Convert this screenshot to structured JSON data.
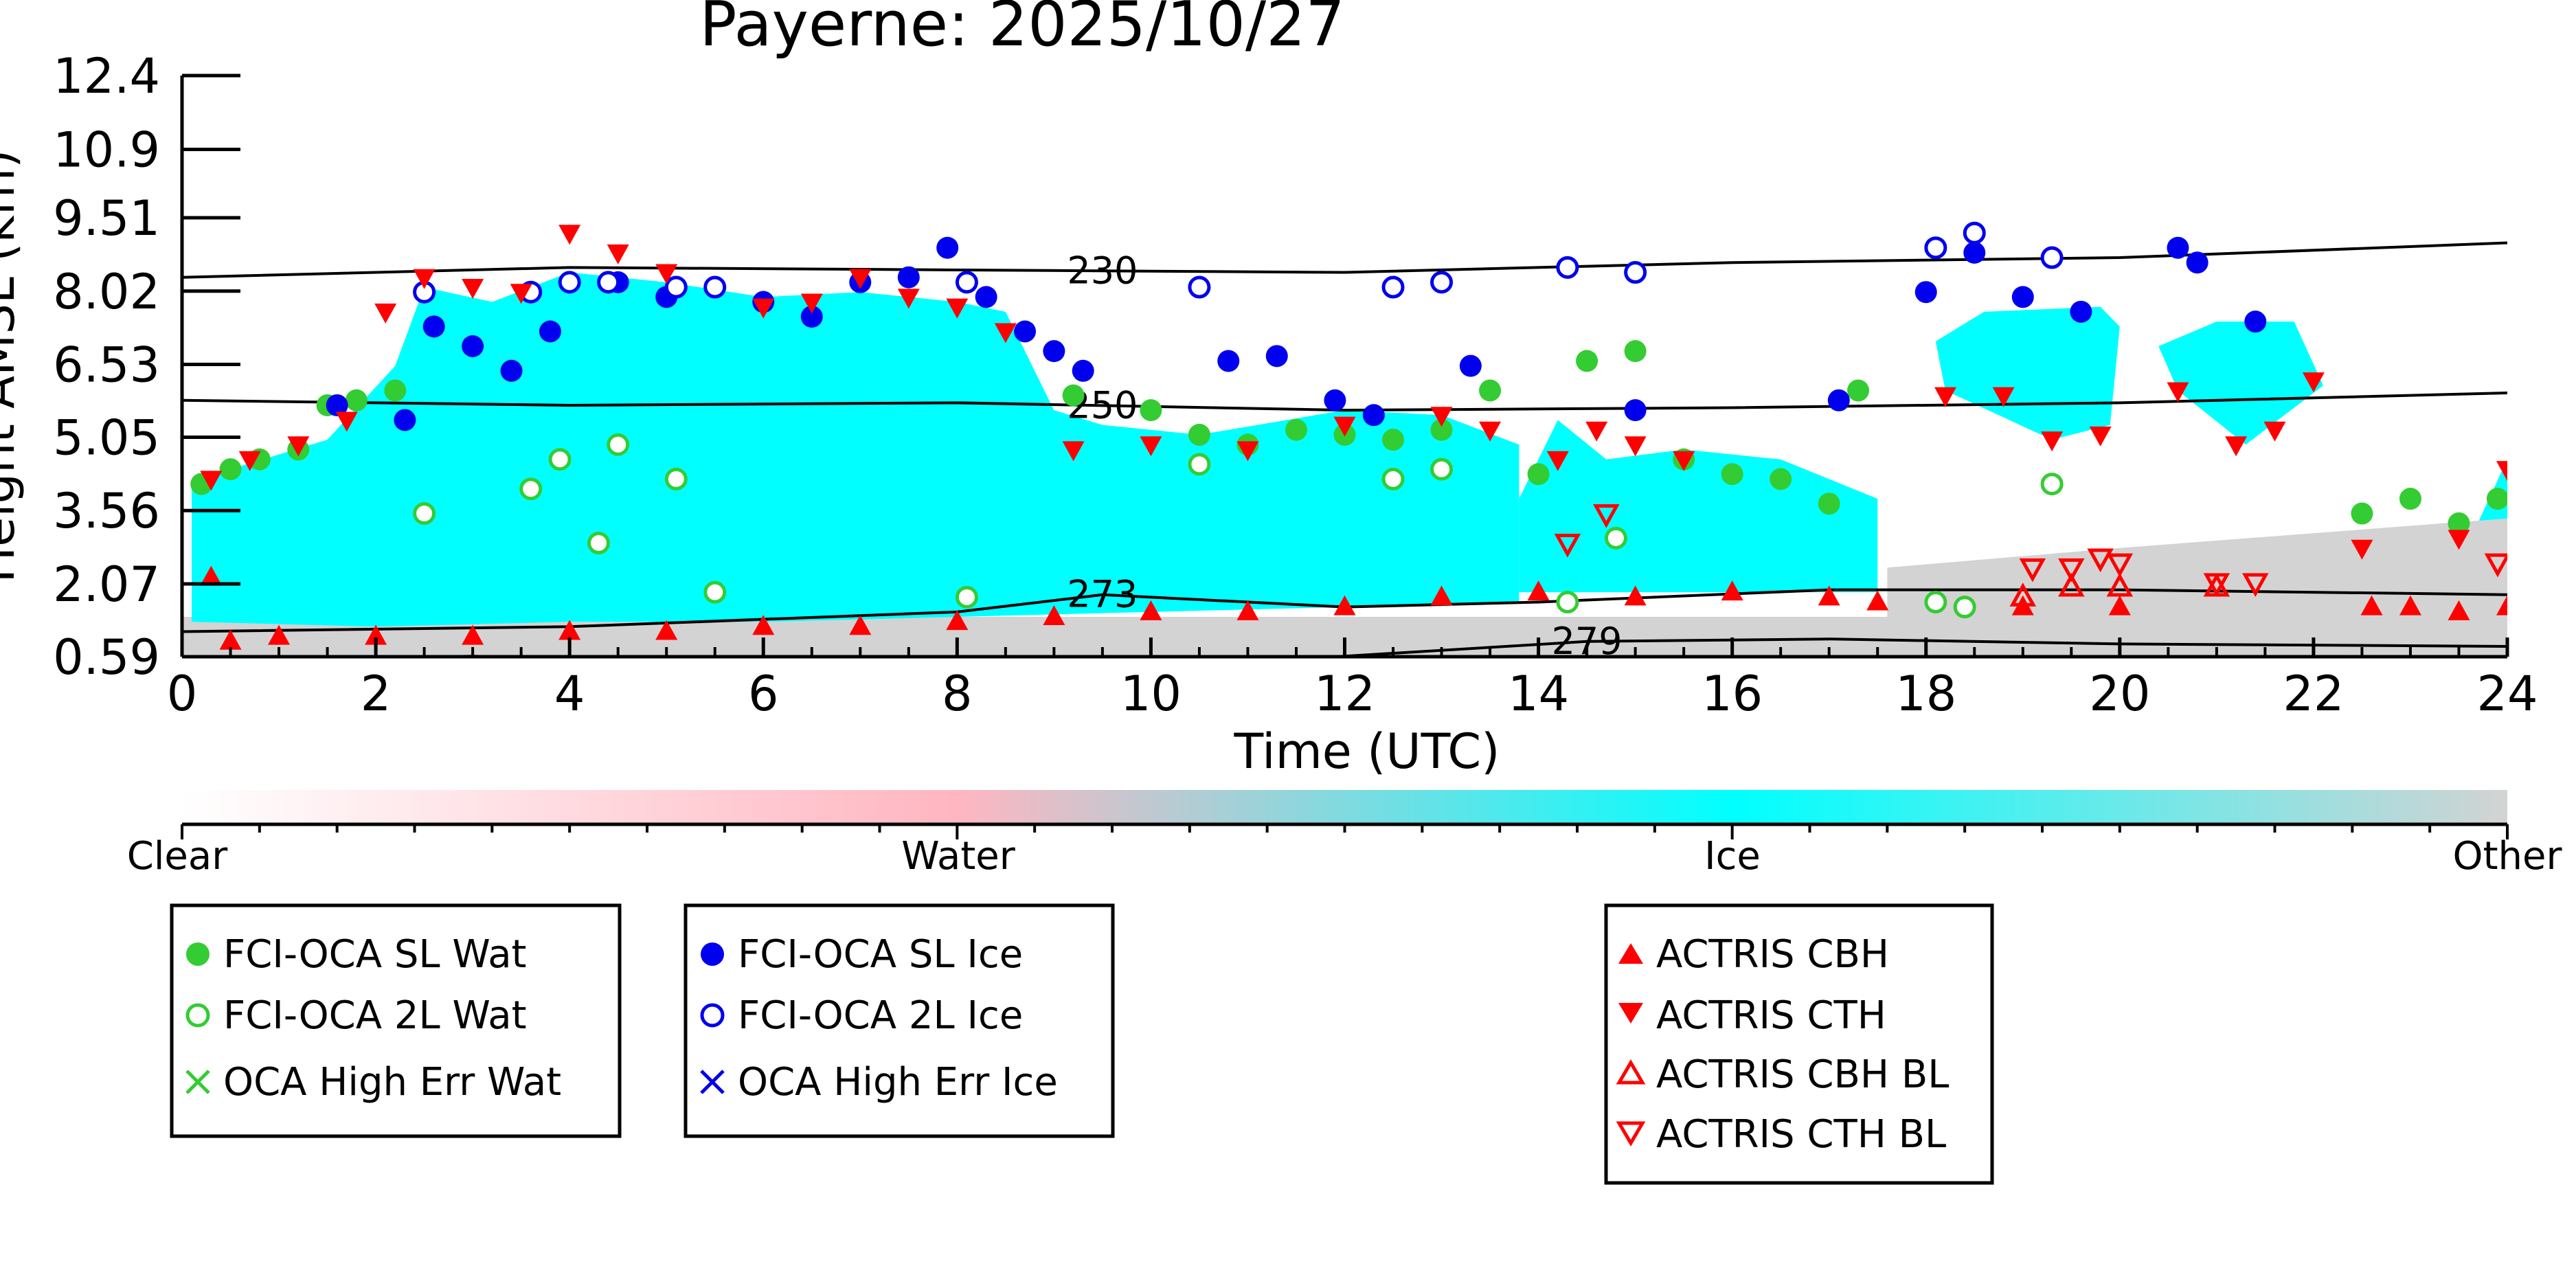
{
  "chart_data": {
    "type": "scatter",
    "title": "Payerne: 2025/10/27",
    "xlabel": "Time (UTC)",
    "ylabel": "Height AMSL (km)",
    "xlim": [
      0,
      24
    ],
    "ylim": [
      0.59,
      12.4
    ],
    "xticks": [
      "0",
      "2",
      "4",
      "6",
      "8",
      "10",
      "12",
      "14",
      "16",
      "18",
      "20",
      "22",
      "24"
    ],
    "yticks": [
      "0.59",
      "2.07",
      "3.56",
      "5.05",
      "6.53",
      "8.02",
      "9.51",
      "10.9",
      "12.4"
    ],
    "colorbar": {
      "labels": [
        "Clear",
        "Water",
        "Ice",
        "Other"
      ],
      "colors": [
        "#ffffff",
        "#ffb6c1",
        "#00ffff",
        "#d3d3d3"
      ]
    },
    "isotherms": [
      {
        "label": "230",
        "x": [
          0,
          4,
          8,
          12,
          16,
          20,
          24
        ],
        "y": [
          8.3,
          8.5,
          8.45,
          8.4,
          8.6,
          8.7,
          9.0
        ]
      },
      {
        "label": "250",
        "x": [
          0,
          4,
          8,
          12,
          16,
          20,
          24
        ],
        "y": [
          5.8,
          5.7,
          5.75,
          5.6,
          5.65,
          5.75,
          5.95
        ]
      },
      {
        "label": "273",
        "x": [
          0,
          4,
          8,
          9.5,
          12,
          14,
          17,
          20,
          24
        ],
        "y": [
          1.1,
          1.2,
          1.5,
          1.85,
          1.6,
          1.7,
          1.95,
          1.95,
          1.85
        ]
      },
      {
        "label": "279",
        "x": [
          0,
          3,
          6,
          9,
          12,
          14.5,
          17,
          20,
          24
        ],
        "y": [
          0.5,
          0.6,
          0.45,
          0.3,
          0.6,
          0.9,
          0.95,
          0.85,
          0.8
        ]
      }
    ],
    "regions": [
      {
        "kind": "ice",
        "x": [
          0.1,
          0.5,
          1.5,
          2.2,
          2.5,
          3.2,
          4,
          5,
          6,
          7,
          8,
          8.5,
          9,
          9.5,
          10.5,
          12,
          13,
          13.8,
          13.8,
          12,
          10,
          8,
          6,
          4,
          2,
          0.1
        ],
        "y": [
          4.2,
          4.4,
          5.0,
          6.5,
          8.1,
          7.8,
          8.4,
          8.2,
          7.9,
          8.0,
          7.8,
          7.6,
          5.6,
          5.3,
          5.1,
          5.6,
          5.5,
          4.9,
          1.7,
          1.6,
          1.5,
          1.4,
          1.3,
          1.3,
          1.2,
          1.3
        ]
      },
      {
        "kind": "ice",
        "x": [
          13.8,
          14.2,
          14.7,
          15.5,
          16.5,
          17.5,
          17.5,
          15,
          13.8
        ],
        "y": [
          3.8,
          5.4,
          4.6,
          4.8,
          4.6,
          3.8,
          1.9,
          1.9,
          1.9
        ]
      },
      {
        "kind": "ice",
        "x": [
          18.1,
          18.6,
          19.8,
          20,
          19.9,
          19.3,
          18.2
        ],
        "y": [
          7.0,
          7.6,
          7.7,
          7.3,
          5.3,
          5.0,
          6.0
        ]
      },
      {
        "kind": "ice",
        "x": [
          20.4,
          21,
          21.8,
          22.1,
          21.3,
          20.6
        ],
        "y": [
          6.9,
          7.4,
          7.4,
          6.1,
          4.9,
          6.0
        ]
      },
      {
        "kind": "ice",
        "x": [
          22.4,
          23.6,
          24,
          24,
          22.4
        ],
        "y": [
          2.8,
          2.9,
          4.6,
          2.0,
          2.0
        ]
      },
      {
        "kind": "other",
        "x": [
          17.6,
          20,
          24,
          24,
          17.6
        ],
        "y": [
          2.4,
          2.8,
          3.4,
          0.59,
          0.59
        ]
      }
    ],
    "series": [
      {
        "name": "FCI-OCA SL Wat",
        "marker": "filled-circle",
        "color": "#33cc33",
        "x": [
          0.2,
          0.5,
          0.8,
          1.2,
          1.5,
          1.8,
          2.2,
          9.2,
          10,
          10.5,
          11,
          11.5,
          12,
          12.5,
          13,
          13.5,
          14,
          14.5,
          15,
          15.5,
          16,
          16.5,
          17,
          17.3,
          22.5,
          23,
          23.5,
          23.9
        ],
        "y": [
          4.1,
          4.4,
          4.6,
          4.8,
          5.7,
          5.8,
          6.0,
          5.9,
          5.6,
          5.1,
          4.9,
          5.2,
          5.1,
          5.0,
          5.2,
          6.0,
          4.3,
          6.6,
          6.8,
          4.6,
          4.3,
          4.2,
          3.7,
          6.0,
          3.5,
          3.8,
          3.3,
          3.8
        ]
      },
      {
        "name": "FCI-OCA 2L Wat",
        "marker": "open-circle",
        "color": "#33cc33",
        "x": [
          2.5,
          3.6,
          3.9,
          4.3,
          4.5,
          5.1,
          5.5,
          8.1,
          10.5,
          12.5,
          13,
          14.3,
          14.8,
          18.1,
          18.4,
          19.3
        ],
        "y": [
          3.5,
          4.0,
          4.6,
          2.9,
          4.9,
          4.2,
          1.9,
          1.8,
          4.5,
          4.2,
          4.4,
          1.7,
          3.0,
          1.7,
          1.6,
          4.1
        ]
      },
      {
        "name": "FCI-OCA SL Ice",
        "marker": "filled-circle",
        "color": "#0000ee",
        "x": [
          1.6,
          2.3,
          2.6,
          3.0,
          3.4,
          3.8,
          4.5,
          5.0,
          5.5,
          6.0,
          6.5,
          7.0,
          7.5,
          7.9,
          8.3,
          8.7,
          9.0,
          9.3,
          10.8,
          11.3,
          11.9,
          12.3,
          13.3,
          15,
          17.1,
          18,
          18.5,
          19,
          19.6,
          20.6,
          20.8,
          21.4
        ],
        "y": [
          5.7,
          5.4,
          7.3,
          6.9,
          6.4,
          7.2,
          8.2,
          7.9,
          8.1,
          7.8,
          7.5,
          8.2,
          8.3,
          8.9,
          7.9,
          7.2,
          6.8,
          6.4,
          6.6,
          6.7,
          5.8,
          5.5,
          6.5,
          5.6,
          5.8,
          8.0,
          8.8,
          7.9,
          7.6,
          8.9,
          8.6,
          7.4
        ]
      },
      {
        "name": "FCI-OCA 2L Ice",
        "marker": "open-circle",
        "color": "#0000ee",
        "x": [
          2.5,
          3.6,
          4.0,
          4.4,
          5.1,
          5.5,
          8.1,
          10.5,
          12.5,
          13,
          14.3,
          15,
          18.1,
          18.5,
          19.3
        ],
        "y": [
          8.0,
          8.0,
          8.2,
          8.2,
          8.1,
          8.1,
          8.2,
          8.1,
          8.1,
          8.2,
          8.5,
          8.4,
          8.9,
          9.2,
          8.7
        ]
      },
      {
        "name": "ACTRIS CBH",
        "marker": "triangle-up",
        "color": "#ff0000",
        "x": [
          0.3,
          0.5,
          1.0,
          2.0,
          3.0,
          4.0,
          5.0,
          6.0,
          7.0,
          8.0,
          9.0,
          10.0,
          11.0,
          12.0,
          13.0,
          14.0,
          15.0,
          16.0,
          17.0,
          17.5,
          19.0,
          20.0,
          22.6,
          23.0,
          23.5,
          24.0
        ],
        "y": [
          2.2,
          0.9,
          1.0,
          1.0,
          1.0,
          1.1,
          1.1,
          1.2,
          1.2,
          1.3,
          1.4,
          1.5,
          1.5,
          1.6,
          1.8,
          1.9,
          1.8,
          1.9,
          1.8,
          1.7,
          1.6,
          1.6,
          1.6,
          1.6,
          1.5,
          1.6
        ]
      },
      {
        "name": "ACTRIS CTH",
        "marker": "triangle-down",
        "color": "#ff0000",
        "x": [
          0.3,
          0.7,
          1.2,
          1.7,
          2.1,
          2.5,
          3.0,
          3.5,
          4.0,
          4.5,
          5.0,
          6.0,
          6.5,
          7.0,
          7.5,
          8.0,
          8.5,
          9.2,
          10.0,
          11.0,
          12.0,
          13.0,
          13.5,
          14.2,
          14.6,
          15.0,
          15.5,
          18.2,
          18.8,
          19.3,
          19.8,
          20.6,
          21.2,
          21.6,
          22.0,
          22.5,
          23.5,
          24.0
        ],
        "y": [
          4.2,
          4.6,
          4.9,
          5.4,
          7.6,
          8.3,
          8.1,
          8.0,
          9.2,
          8.8,
          8.4,
          7.7,
          7.8,
          8.3,
          7.9,
          7.7,
          7.2,
          4.8,
          4.9,
          4.8,
          5.3,
          5.5,
          5.2,
          4.6,
          5.2,
          4.9,
          4.6,
          5.9,
          5.9,
          5.0,
          5.1,
          6.0,
          4.9,
          5.2,
          6.2,
          2.8,
          3.0,
          4.4
        ]
      },
      {
        "name": "ACTRIS CBH BL",
        "marker": "open-triangle-up",
        "color": "#ff0000",
        "x": [
          19.0,
          19.5,
          20.0,
          21.0
        ],
        "y": [
          1.8,
          2.0,
          2.0,
          2.0
        ]
      },
      {
        "name": "ACTRIS CTH BL",
        "marker": "open-triangle-down",
        "color": "#ff0000",
        "x": [
          14.3,
          14.7,
          19.1,
          19.5,
          19.8,
          20.0,
          21.0,
          21.4,
          23.9
        ],
        "y": [
          2.9,
          3.5,
          2.4,
          2.4,
          2.6,
          2.5,
          2.1,
          2.1,
          2.5
        ]
      }
    ],
    "legends": [
      {
        "position": "lower-left",
        "entries": [
          "FCI-OCA SL Wat",
          "FCI-OCA 2L Wat",
          "OCA High Err Wat"
        ]
      },
      {
        "position": "lower-center",
        "entries": [
          "FCI-OCA SL Ice",
          "FCI-OCA 2L Ice",
          "OCA High Err Ice"
        ]
      },
      {
        "position": "lower-right",
        "entries": [
          "ACTRIS CBH",
          "ACTRIS CTH",
          "ACTRIS CBH BL",
          "ACTRIS CTH BL"
        ]
      }
    ]
  }
}
